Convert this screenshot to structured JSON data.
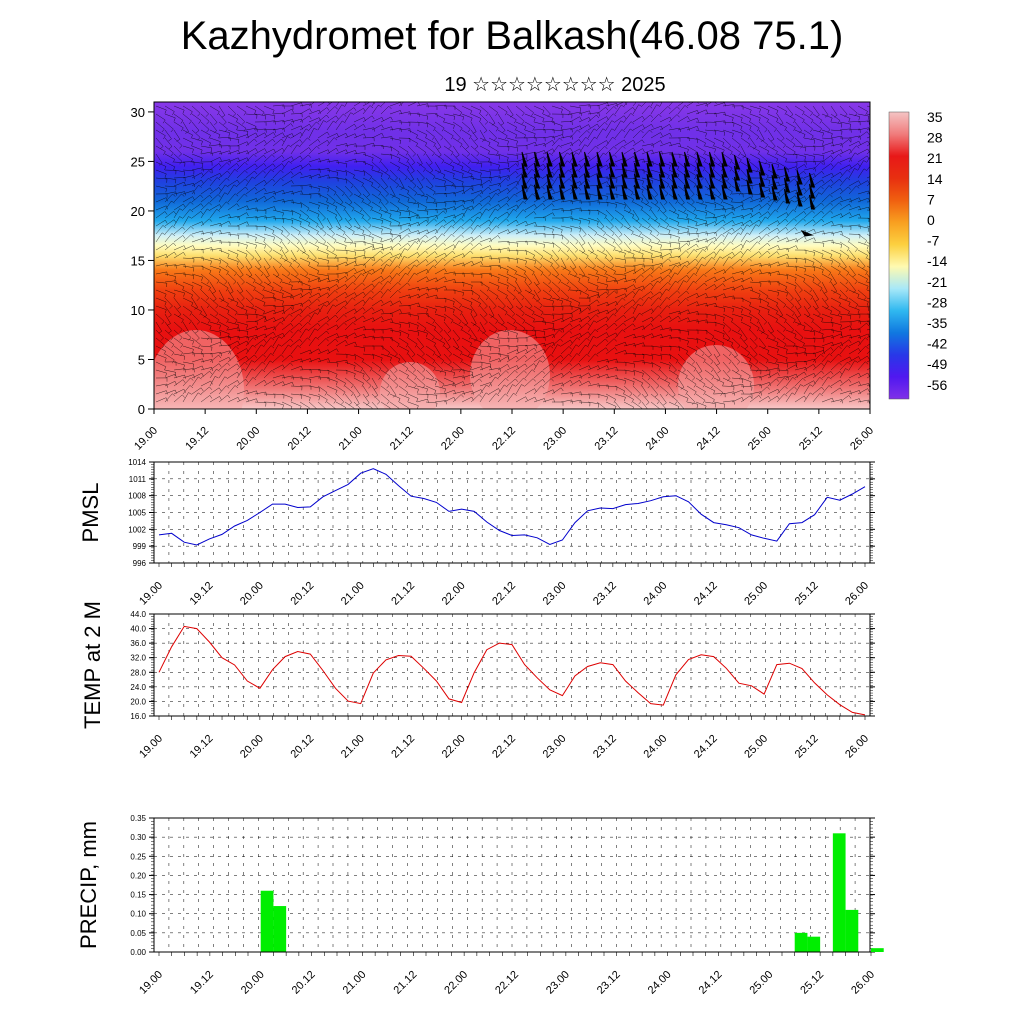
{
  "title": "Kazhydromet for Balkash(46.08 75.1)",
  "subtitle": "19 ☆☆☆☆☆☆☆☆ 2025",
  "x_labels": [
    "19.00",
    "19.12",
    "20.00",
    "20.12",
    "21.00",
    "21.12",
    "22.00",
    "22.12",
    "23.00",
    "23.12",
    "24.00",
    "24.12",
    "25.00",
    "25.12",
    "26.00"
  ],
  "chart_data": [
    {
      "type": "heatmap",
      "name": "cross-section",
      "x_ticks": [
        "19.00",
        "19.12",
        "20.00",
        "20.12",
        "21.00",
        "21.12",
        "22.00",
        "22.12",
        "23.00",
        "23.12",
        "24.00",
        "24.12",
        "25.00",
        "25.12",
        "26.00"
      ],
      "y_ticks": [
        "0",
        "5",
        "10",
        "15",
        "20",
        "25",
        "30"
      ],
      "ylim": [
        0,
        31
      ],
      "colorbar_labels": [
        "35",
        "28",
        "21",
        "14",
        "7",
        "0",
        "-7",
        "-14",
        "-21",
        "-28",
        "-35",
        "-42",
        "-49",
        "-56"
      ],
      "colorbar_stops": [
        "#f4c4c4",
        "#f07c7c",
        "#e81818",
        "#e83010",
        "#f06010",
        "#f8a020",
        "#fcd040",
        "#fffab0",
        "#a8e8f8",
        "#30b8f0",
        "#1078e0",
        "#2838e8",
        "#5018f0",
        "#8030e8"
      ],
      "temp_profile": [
        {
          "z": 0,
          "t": 36
        },
        {
          "z": 2,
          "t": 32
        },
        {
          "z": 5,
          "t": 27
        },
        {
          "z": 8,
          "t": 23
        },
        {
          "z": 10,
          "t": 19
        },
        {
          "z": 12,
          "t": 14
        },
        {
          "z": 14,
          "t": 6
        },
        {
          "z": 15.5,
          "t": -4
        },
        {
          "z": 16.5,
          "t": -12
        },
        {
          "z": 17.5,
          "t": -18
        },
        {
          "z": 19,
          "t": -26
        },
        {
          "z": 21,
          "t": -34
        },
        {
          "z": 23,
          "t": -42
        },
        {
          "z": 24.5,
          "t": -50
        },
        {
          "z": 26,
          "t": -54
        },
        {
          "z": 28,
          "t": -58
        },
        {
          "z": 31,
          "t": -60
        }
      ]
    },
    {
      "type": "line",
      "ylabel": "PMSL",
      "y_ticks": [
        "996",
        "999",
        "1002",
        "1005",
        "1008",
        "1011",
        "1014"
      ],
      "ylim": [
        996,
        1014
      ],
      "color": "#0000cc",
      "x": [
        0,
        3,
        6,
        9,
        12,
        15,
        18,
        21,
        24,
        27,
        30,
        33,
        36,
        39,
        42,
        45,
        48,
        51,
        54,
        57,
        60,
        63,
        66,
        69,
        72,
        75,
        78,
        81,
        84,
        87,
        90,
        93,
        96,
        99,
        102,
        105,
        108,
        111,
        114,
        117,
        120,
        123,
        126,
        129,
        132,
        135,
        138,
        141,
        144,
        147,
        150,
        153,
        156,
        159,
        162,
        165,
        168
      ],
      "values": [
        1001,
        1001.3,
        999.7,
        999.2,
        1000.3,
        1001.1,
        1002.6,
        1003.6,
        1005,
        1006.5,
        1006.5,
        1005.9,
        1006,
        1007.8,
        1008.9,
        1010,
        1012,
        1012.8,
        1011.8,
        1009.8,
        1007.9,
        1007.5,
        1006.8,
        1005.2,
        1005.6,
        1005.2,
        1003.3,
        1001.8,
        1000.9,
        1001,
        1000.5,
        999.3,
        1000.1,
        1003.2,
        1005.3,
        1005.8,
        1005.7,
        1006.4,
        1006.6,
        1007.1,
        1007.8,
        1008,
        1006.9,
        1004.7,
        1003.2,
        1002.8,
        1002.3,
        1001,
        1000.4,
        999.9,
        1003,
        1003.2,
        1004.6,
        1007.7,
        1007.2,
        1008.3,
        1009.6
      ]
    },
    {
      "type": "line",
      "ylabel": "TEMP at 2 M",
      "y_ticks": [
        "16.0",
        "20.0",
        "24.0",
        "28.0",
        "32.0",
        "36.0",
        "40.0",
        "44.0"
      ],
      "ylim": [
        16,
        44
      ],
      "color": "#dd0000",
      "x": [
        0,
        3,
        6,
        9,
        12,
        15,
        18,
        21,
        24,
        27,
        30,
        33,
        36,
        39,
        42,
        45,
        48,
        51,
        54,
        57,
        60,
        63,
        66,
        69,
        72,
        75,
        78,
        81,
        84,
        87,
        90,
        93,
        96,
        99,
        102,
        105,
        108,
        111,
        114,
        117,
        120,
        123,
        126,
        129,
        132,
        135,
        138,
        141,
        144,
        147,
        150,
        153,
        156,
        159,
        162,
        165,
        168
      ],
      "values": [
        28,
        35,
        40.6,
        40,
        36.3,
        32,
        30,
        25.6,
        23.6,
        28.7,
        32.3,
        33.7,
        33,
        28.5,
        23.6,
        20.1,
        19.4,
        27.8,
        31.4,
        32.6,
        32.4,
        29.1,
        25.6,
        20.7,
        19.7,
        27.9,
        34.2,
        36,
        35.6,
        30.1,
        26.5,
        23.2,
        21.6,
        27,
        29.6,
        30.6,
        30.1,
        25.6,
        22.4,
        19.4,
        19,
        27.3,
        31.5,
        32.8,
        32.3,
        29.1,
        25,
        24.3,
        22,
        30.1,
        30.5,
        29,
        25.1,
        21.8,
        19.1,
        17,
        16.3
      ]
    },
    {
      "type": "bar",
      "ylabel": "PRECIP, mm",
      "y_ticks": [
        "0.00",
        "0.05",
        "0.10",
        "0.15",
        "0.20",
        "0.25",
        "0.30",
        "0.35"
      ],
      "ylim": [
        0,
        0.35
      ],
      "color": "#00ee00",
      "bars": [
        {
          "x": 24,
          "value": 0.16
        },
        {
          "x": 27,
          "value": 0.12
        },
        {
          "x": 150,
          "value": 0.05
        },
        {
          "x": 153,
          "value": 0.04
        },
        {
          "x": 159,
          "value": 0.31
        },
        {
          "x": 162,
          "value": 0.11
        },
        {
          "x": 168,
          "value": 0.01
        }
      ]
    }
  ]
}
